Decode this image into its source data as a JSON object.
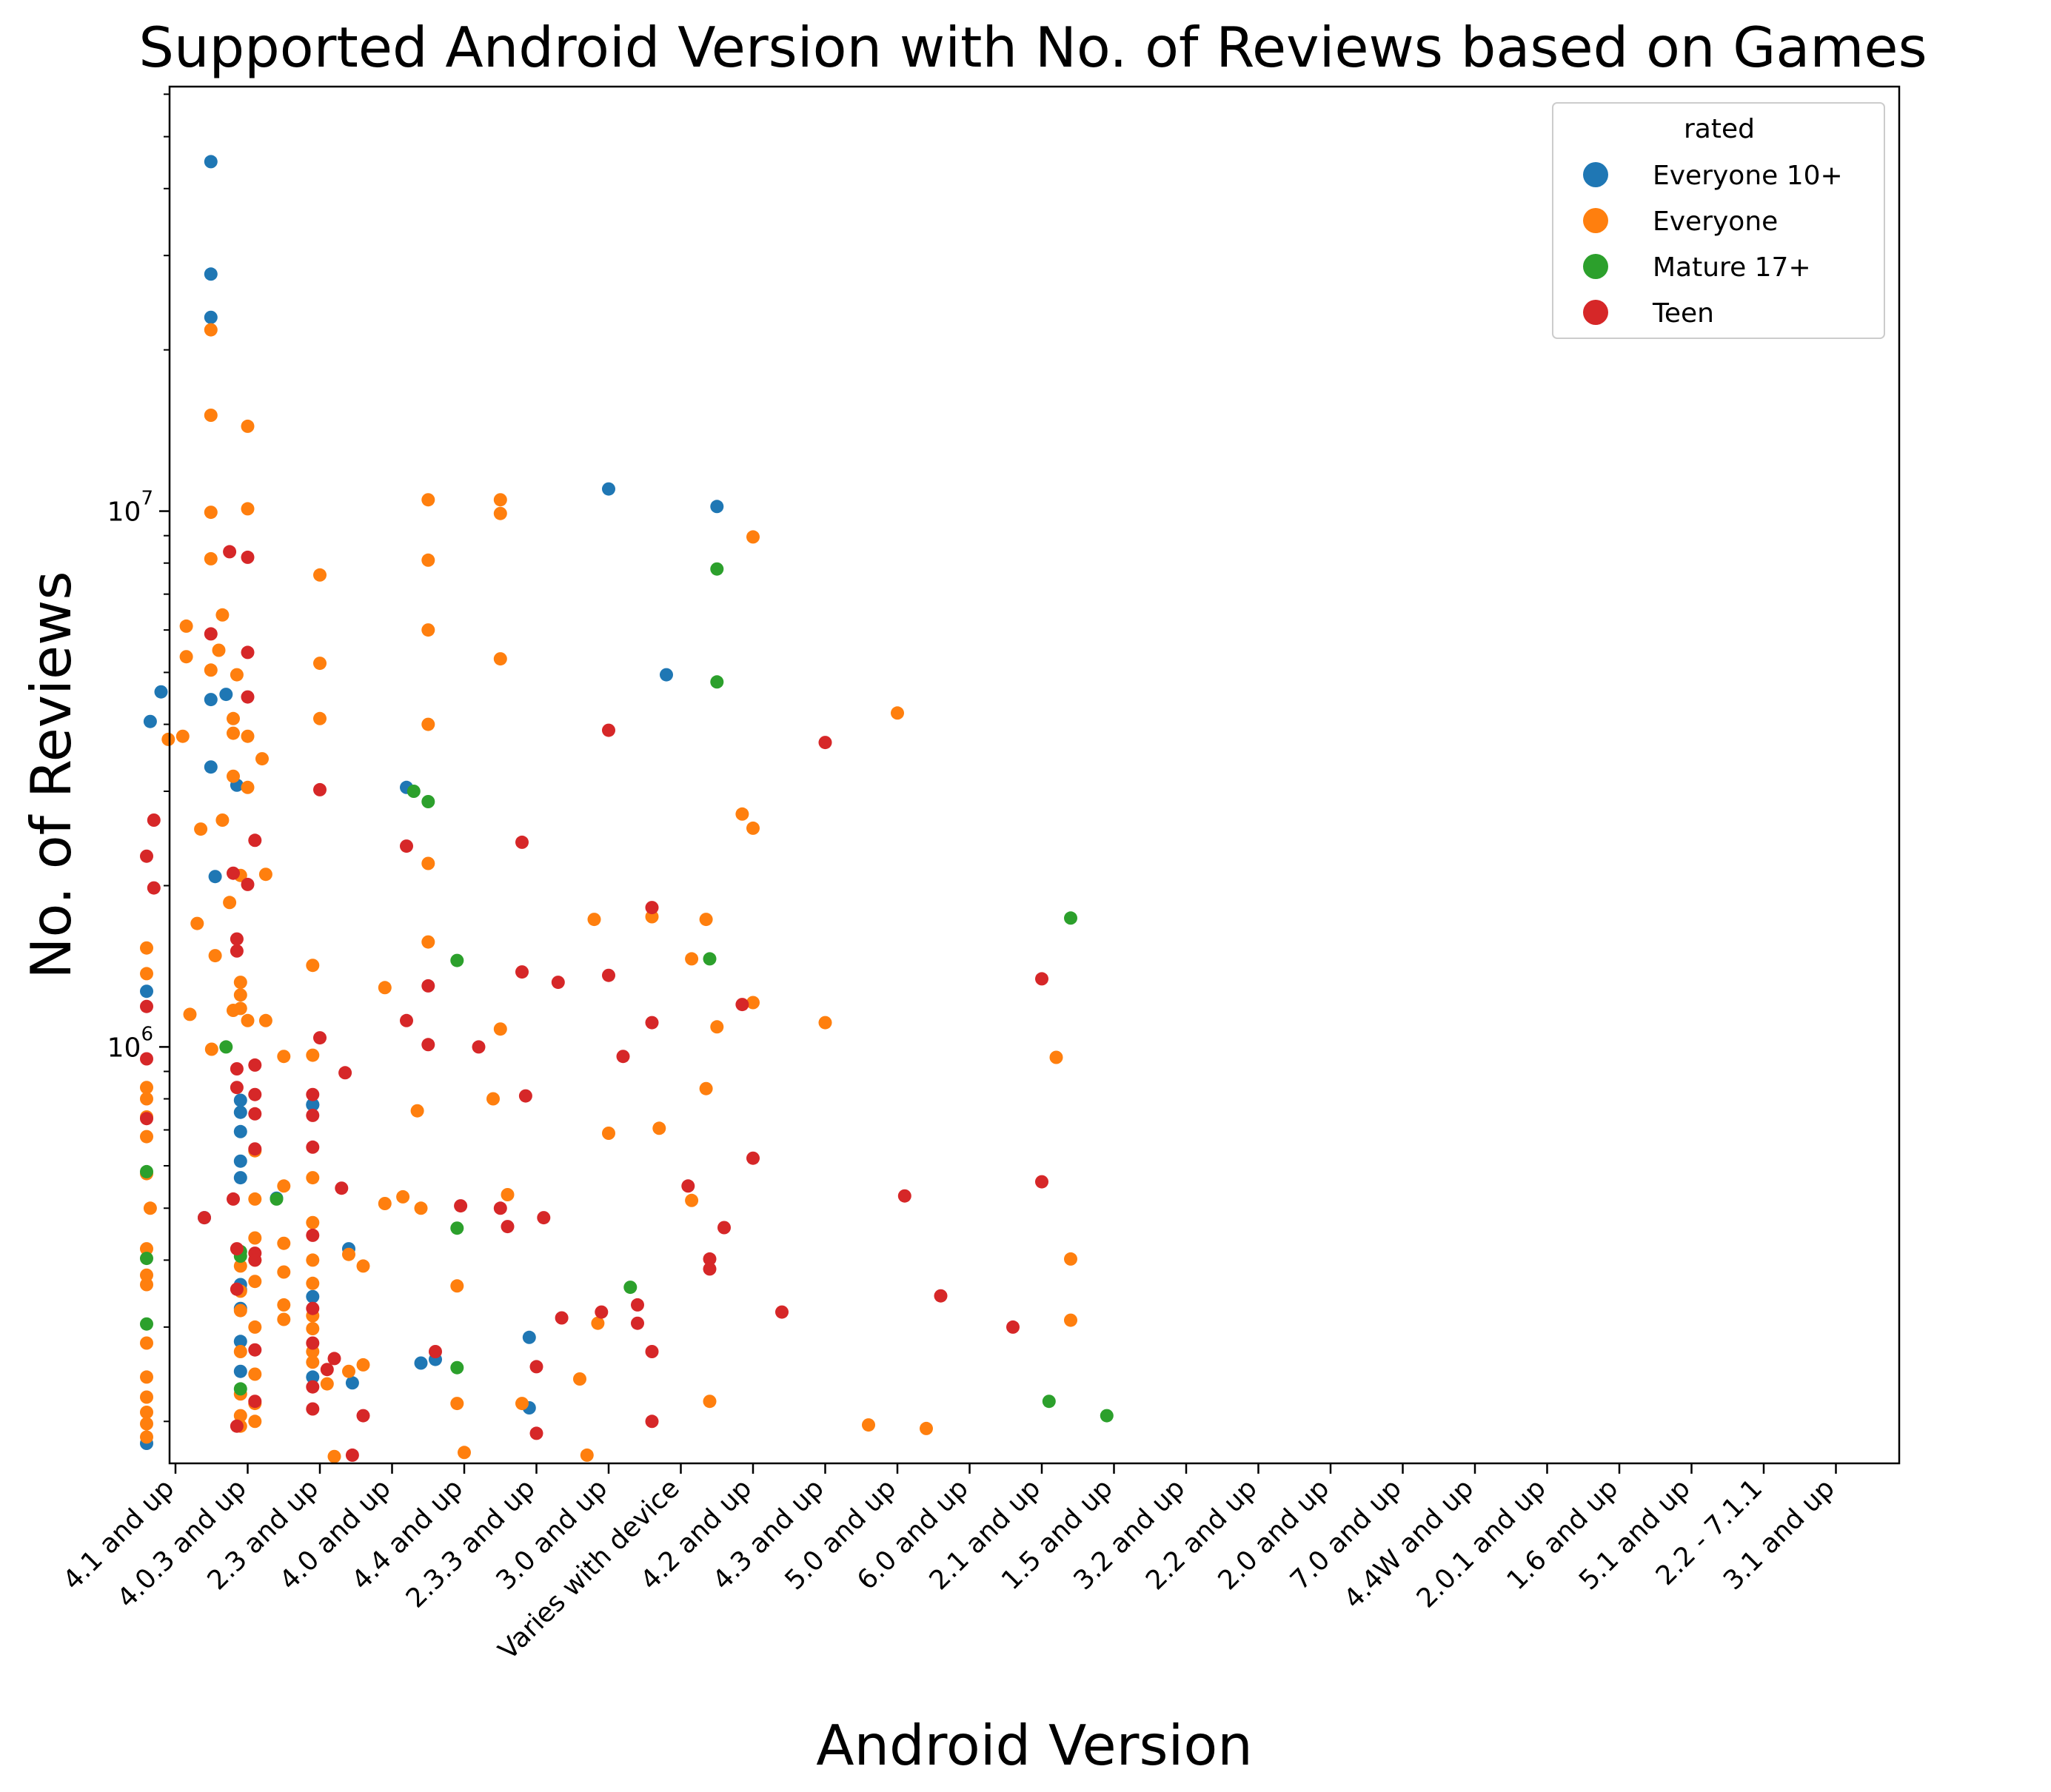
{
  "chart_data": {
    "type": "scatter",
    "title": "Supported Android Version with No. of Reviews based on Games",
    "xlabel": "Android Version",
    "ylabel": "No. of Reviews",
    "yscale": "log",
    "ylim": [
      167000,
      62000000
    ],
    "y_ticks": [
      {
        "value": 1000000,
        "base": "10",
        "exp": "6"
      },
      {
        "value": 10000000,
        "base": "10",
        "exp": "7"
      }
    ],
    "categories": [
      "4.1 and up",
      "4.0.3 and up",
      "2.3 and up",
      "4.0 and up",
      "4.4 and up",
      "2.3.3 and up",
      "3.0 and up",
      "Varies with device",
      "4.2 and up",
      "4.3 and up",
      "5.0 and up",
      "6.0 and up",
      "2.1 and up",
      "1.5 and up",
      "3.2 and up",
      "2.2 and up",
      "2.0 and up",
      "7.0 and up",
      "4.4W and up",
      "2.0.1 and up",
      "1.6 and up",
      "5.1 and up",
      "2.2 - 7.1.1",
      "3.1 and up"
    ],
    "legend": {
      "title": "rated",
      "position": "upper right"
    },
    "series": [
      {
        "name": "Everyone 10+",
        "color": "#1f77b4",
        "points": [
          [
            0.49,
            44900000
          ],
          [
            0.49,
            27700000
          ],
          [
            0.49,
            23000000
          ],
          [
            -0.35,
            4050000
          ],
          [
            -0.2,
            4600000
          ],
          [
            0.49,
            4450000
          ],
          [
            0.7,
            4550000
          ],
          [
            0.49,
            3330000
          ],
          [
            0.85,
            3080000
          ],
          [
            0.55,
            2080000
          ],
          [
            -0.4,
            1270000
          ],
          [
            0.4,
            480000
          ],
          [
            -0.4,
            182000
          ],
          [
            0.9,
            795000
          ],
          [
            0.9,
            755000
          ],
          [
            0.9,
            695000
          ],
          [
            0.9,
            612000
          ],
          [
            0.9,
            570000
          ],
          [
            0.9,
            360000
          ],
          [
            0.9,
            352000
          ],
          [
            0.9,
            325000
          ],
          [
            0.9,
            282000
          ],
          [
            0.9,
            248000
          ],
          [
            1.4,
            522000
          ],
          [
            1.9,
            780000
          ],
          [
            1.9,
            342000
          ],
          [
            1.9,
            242000
          ],
          [
            2.4,
            420000
          ],
          [
            2.45,
            236000
          ],
          [
            3.2,
            3050000
          ],
          [
            3.4,
            257000
          ],
          [
            3.6,
            261000
          ],
          [
            4.9,
            287000
          ],
          [
            4.9,
            212000
          ],
          [
            6.0,
            11000000
          ],
          [
            7.5,
            10200000
          ],
          [
            6.8,
            4950000
          ],
          [
            1.9,
            780000
          ]
        ]
      },
      {
        "name": "Everyone",
        "color": "#ff7f0e",
        "points": [
          [
            0.49,
            21800000
          ],
          [
            0.49,
            15100000
          ],
          [
            0.49,
            9950000
          ],
          [
            0.49,
            8150000
          ],
          [
            0.49,
            5050000
          ],
          [
            0.15,
            6100000
          ],
          [
            0.65,
            6400000
          ],
          [
            0.15,
            5350000
          ],
          [
            0.6,
            5500000
          ],
          [
            -0.1,
            3750000
          ],
          [
            0.1,
            3800000
          ],
          [
            0.8,
            3850000
          ],
          [
            0.35,
            2550000
          ],
          [
            0.65,
            2650000
          ],
          [
            0.9,
            2090000
          ],
          [
            0.75,
            1860000
          ],
          [
            0.3,
            1700000
          ],
          [
            -0.4,
            1530000
          ],
          [
            0.55,
            1480000
          ],
          [
            -0.4,
            1370000
          ],
          [
            0.9,
            1320000
          ],
          [
            0.9,
            1250000
          ],
          [
            0.9,
            1180000
          ],
          [
            0.2,
            1150000
          ],
          [
            0.5,
            990000
          ],
          [
            -0.4,
            840000
          ],
          [
            -0.4,
            800000
          ],
          [
            -0.4,
            740000
          ],
          [
            -0.4,
            680000
          ],
          [
            -0.4,
            580000
          ],
          [
            -0.35,
            500000
          ],
          [
            -0.4,
            420000
          ],
          [
            -0.4,
            375000
          ],
          [
            -0.4,
            360000
          ],
          [
            -0.4,
            280000
          ],
          [
            -0.4,
            242000
          ],
          [
            -0.4,
            222000
          ],
          [
            -0.4,
            208000
          ],
          [
            -0.4,
            198000
          ],
          [
            -0.4,
            187000
          ],
          [
            1.0,
            14400000
          ],
          [
            1.0,
            10100000
          ],
          [
            0.85,
            4950000
          ],
          [
            0.8,
            4100000
          ],
          [
            1.0,
            3800000
          ],
          [
            1.2,
            3450000
          ],
          [
            0.8,
            3200000
          ],
          [
            1.0,
            3050000
          ],
          [
            1.25,
            2100000
          ],
          [
            0.8,
            1170000
          ],
          [
            1.0,
            1120000
          ],
          [
            1.25,
            1120000
          ],
          [
            1.5,
            960000
          ],
          [
            1.5,
            550000
          ],
          [
            1.5,
            430000
          ],
          [
            1.5,
            310000
          ],
          [
            1.5,
            330000
          ],
          [
            1.5,
            380000
          ],
          [
            1.1,
            520000
          ],
          [
            1.1,
            640000
          ],
          [
            1.1,
            440000
          ],
          [
            1.1,
            365000
          ],
          [
            1.1,
            400000
          ],
          [
            1.1,
            300000
          ],
          [
            1.1,
            245000
          ],
          [
            1.1,
            216000
          ],
          [
            1.1,
            200000
          ],
          [
            0.9,
            390000
          ],
          [
            0.9,
            350000
          ],
          [
            0.9,
            322000
          ],
          [
            0.9,
            270000
          ],
          [
            0.9,
            225000
          ],
          [
            0.9,
            205000
          ],
          [
            0.9,
            196000
          ],
          [
            1.9,
            1420000
          ],
          [
            1.9,
            965000
          ],
          [
            1.9,
            570000
          ],
          [
            1.9,
            470000
          ],
          [
            1.9,
            400000
          ],
          [
            1.9,
            362000
          ],
          [
            1.9,
            298000
          ],
          [
            1.9,
            315000
          ],
          [
            1.9,
            270000
          ],
          [
            1.9,
            258000
          ],
          [
            2.1,
            235000
          ],
          [
            2.2,
            172000
          ],
          [
            2.9,
            510000
          ],
          [
            3.15,
            525000
          ],
          [
            2.0,
            7600000
          ],
          [
            2.0,
            5200000
          ],
          [
            2.0,
            4100000
          ],
          [
            2.9,
            1290000
          ],
          [
            3.35,
            760000
          ],
          [
            2.4,
            410000
          ],
          [
            2.6,
            390000
          ],
          [
            2.4,
            248000
          ],
          [
            2.6,
            255000
          ],
          [
            3.5,
            10500000
          ],
          [
            3.5,
            8100000
          ],
          [
            3.5,
            6000000
          ],
          [
            3.5,
            4000000
          ],
          [
            3.5,
            2200000
          ],
          [
            3.5,
            1570000
          ],
          [
            3.4,
            500000
          ],
          [
            3.9,
            358000
          ],
          [
            3.9,
            216000
          ],
          [
            4.0,
            175000
          ],
          [
            4.5,
            10500000
          ],
          [
            4.5,
            9900000
          ],
          [
            4.5,
            5300000
          ],
          [
            4.5,
            1080000
          ],
          [
            4.4,
            800000
          ],
          [
            4.6,
            530000
          ],
          [
            4.8,
            216000
          ],
          [
            5.8,
            1730000
          ],
          [
            5.6,
            240000
          ],
          [
            5.7,
            173000
          ],
          [
            6.0,
            690000
          ],
          [
            5.85,
            305000
          ],
          [
            6.6,
            1750000
          ],
          [
            6.7,
            705000
          ],
          [
            7.5,
            1090000
          ],
          [
            7.15,
            517000
          ],
          [
            7.15,
            1460000
          ],
          [
            7.35,
            1730000
          ],
          [
            7.35,
            836000
          ],
          [
            7.4,
            218000
          ],
          [
            8.0,
            8950000
          ],
          [
            7.85,
            2720000
          ],
          [
            8.0,
            2560000
          ],
          [
            8.0,
            1210000
          ],
          [
            9.0,
            1110000
          ],
          [
            10.0,
            4200000
          ],
          [
            9.6,
            197000
          ],
          [
            10.4,
            194000
          ],
          [
            12.2,
            956000
          ],
          [
            12.4,
            402000
          ],
          [
            12.4,
            309000
          ]
        ]
      },
      {
        "name": "Mature 17+",
        "color": "#2ca02c",
        "points": [
          [
            0.7,
            1000000
          ],
          [
            -0.4,
            585000
          ],
          [
            -0.4,
            403000
          ],
          [
            -0.4,
            304000
          ],
          [
            0.9,
            415000
          ],
          [
            0.9,
            407000
          ],
          [
            0.9,
            230000
          ],
          [
            1.4,
            520000
          ],
          [
            3.3,
            3000000
          ],
          [
            3.5,
            2870000
          ],
          [
            3.9,
            1450000
          ],
          [
            3.9,
            459000
          ],
          [
            3.9,
            252000
          ],
          [
            6.3,
            356000
          ],
          [
            7.5,
            7800000
          ],
          [
            7.5,
            4800000
          ],
          [
            7.4,
            1460000
          ],
          [
            12.4,
            1740000
          ],
          [
            12.1,
            218000
          ],
          [
            12.9,
            205000
          ]
        ]
      },
      {
        "name": "Teen",
        "color": "#d62728",
        "points": [
          [
            -0.4,
            2270000
          ],
          [
            -0.3,
            1980000
          ],
          [
            -0.3,
            2650000
          ],
          [
            0.49,
            5900000
          ],
          [
            0.4,
            480000
          ],
          [
            -0.4,
            1190000
          ],
          [
            -0.4,
            950000
          ],
          [
            -0.4,
            735000
          ],
          [
            0.85,
            1590000
          ],
          [
            0.85,
            1510000
          ],
          [
            0.85,
            910000
          ],
          [
            0.85,
            840000
          ],
          [
            0.8,
            520000
          ],
          [
            0.85,
            420000
          ],
          [
            0.85,
            353000
          ],
          [
            0.85,
            196000
          ],
          [
            1.1,
            2430000
          ],
          [
            1.1,
            925000
          ],
          [
            1.1,
            815000
          ],
          [
            1.1,
            750000
          ],
          [
            1.1,
            645000
          ],
          [
            1.1,
            412000
          ],
          [
            1.1,
            400000
          ],
          [
            1.1,
            272000
          ],
          [
            1.1,
            218000
          ],
          [
            0.75,
            8400000
          ],
          [
            1.0,
            8200000
          ],
          [
            1.0,
            5450000
          ],
          [
            1.0,
            4500000
          ],
          [
            0.8,
            2110000
          ],
          [
            1.0,
            2010000
          ],
          [
            1.9,
            815000
          ],
          [
            1.9,
            745000
          ],
          [
            1.9,
            650000
          ],
          [
            1.9,
            445000
          ],
          [
            1.9,
            325000
          ],
          [
            1.9,
            280000
          ],
          [
            1.9,
            232000
          ],
          [
            1.9,
            211000
          ],
          [
            2.1,
            250000
          ],
          [
            2.2,
            262000
          ],
          [
            2.3,
            545000
          ],
          [
            2.0,
            3020000
          ],
          [
            2.0,
            1040000
          ],
          [
            2.35,
            895000
          ],
          [
            2.45,
            173000
          ],
          [
            2.6,
            205000
          ],
          [
            3.2,
            1120000
          ],
          [
            3.5,
            1010000
          ],
          [
            3.2,
            2370000
          ],
          [
            3.6,
            270000
          ],
          [
            3.95,
            505000
          ],
          [
            3.5,
            1300000
          ],
          [
            4.2,
            1000000
          ],
          [
            4.8,
            2410000
          ],
          [
            4.8,
            1380000
          ],
          [
            4.85,
            810000
          ],
          [
            4.5,
            500000
          ],
          [
            4.6,
            462000
          ],
          [
            5.1,
            480000
          ],
          [
            5.3,
            1320000
          ],
          [
            5.0,
            253000
          ],
          [
            5.0,
            190000
          ],
          [
            5.35,
            312000
          ],
          [
            5.9,
            320000
          ],
          [
            6.0,
            3900000
          ],
          [
            6.0,
            1360000
          ],
          [
            6.2,
            960000
          ],
          [
            6.4,
            330000
          ],
          [
            6.4,
            305000
          ],
          [
            6.6,
            1820000
          ],
          [
            6.6,
            1110000
          ],
          [
            6.6,
            270000
          ],
          [
            6.6,
            200000
          ],
          [
            7.1,
            550000
          ],
          [
            7.4,
            402000
          ],
          [
            7.4,
            385000
          ],
          [
            7.6,
            460000
          ],
          [
            7.85,
            1200000
          ],
          [
            8.0,
            620000
          ],
          [
            8.4,
            320000
          ],
          [
            9.0,
            3700000
          ],
          [
            10.1,
            527000
          ],
          [
            10.6,
            343000
          ],
          [
            11.6,
            300000
          ],
          [
            12.0,
            1340000
          ],
          [
            12.0,
            560000
          ]
        ]
      }
    ]
  }
}
